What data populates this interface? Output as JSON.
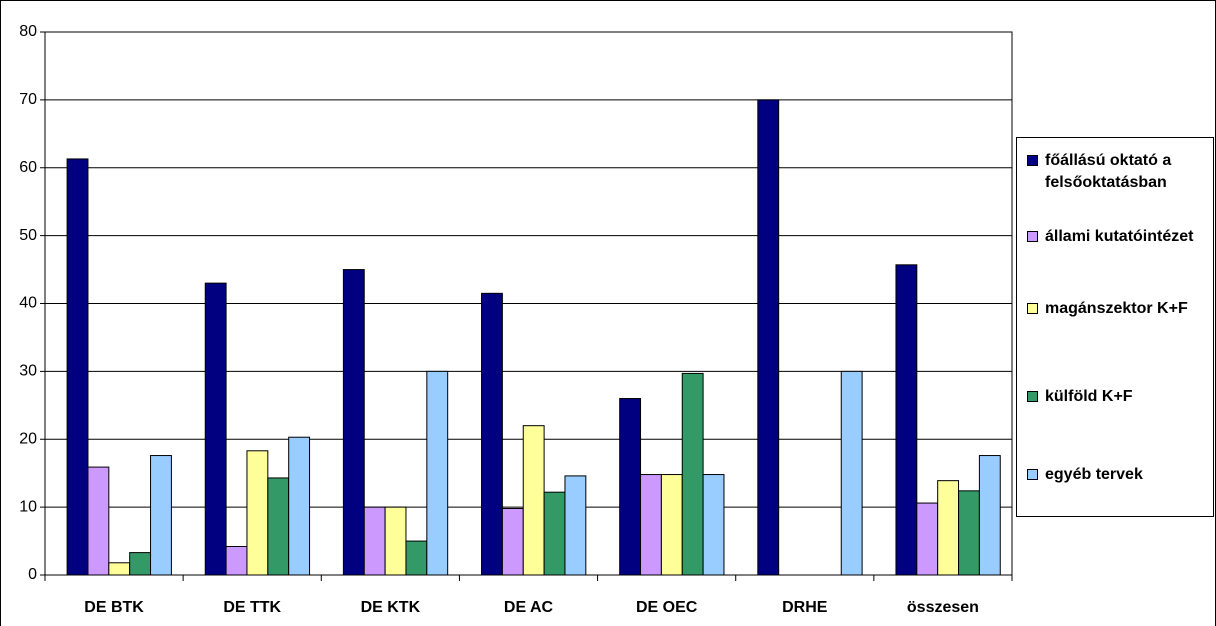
{
  "chart_data": {
    "type": "bar",
    "categories": [
      "DE BTK",
      "DE TTK",
      "DE KTK",
      "DE AC",
      "DE OEC",
      "DRHE",
      "összesen"
    ],
    "series": [
      {
        "name": "főállású oktató a felsőoktatásban",
        "color": "#000080",
        "values": [
          61.3,
          43,
          45,
          41.5,
          26,
          70,
          45.7
        ]
      },
      {
        "name": "állami kutatóintézet",
        "color": "#cc99ff",
        "values": [
          15.9,
          4.2,
          10,
          9.8,
          14.8,
          0,
          10.6
        ]
      },
      {
        "name": "magánszektor K+F",
        "color": "#ffff99",
        "values": [
          1.8,
          18.3,
          10,
          22,
          14.8,
          0,
          13.9
        ]
      },
      {
        "name": "külföld K+F",
        "color": "#339966",
        "values": [
          3.3,
          14.3,
          5,
          12.2,
          29.7,
          0,
          12.4
        ]
      },
      {
        "name": "egyéb tervek",
        "color": "#99ccff",
        "values": [
          17.6,
          20.3,
          30,
          14.6,
          14.8,
          30,
          17.6
        ]
      }
    ],
    "ylim": [
      0,
      80
    ],
    "yticks": [
      0,
      10,
      20,
      30,
      40,
      50,
      60,
      70,
      80
    ],
    "grid": true,
    "legend": "right"
  }
}
